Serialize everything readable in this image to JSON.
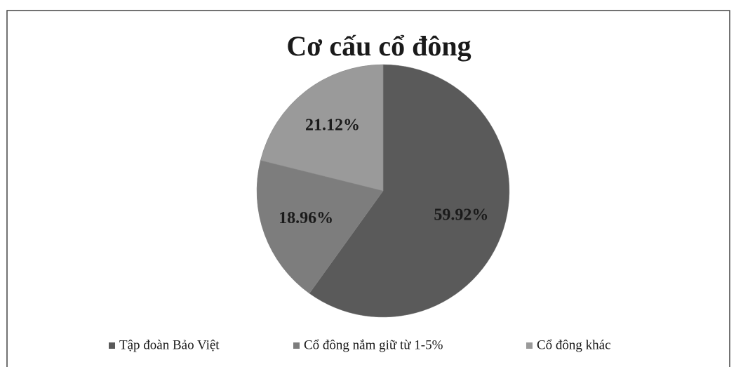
{
  "chart_data": {
    "type": "pie",
    "title": "Cơ cấu cổ đông",
    "categories": [
      "Tập đoàn Bảo Việt",
      "Cổ đông nắm giữ từ 1-5%",
      "Cổ đông khác"
    ],
    "values": [
      59.92,
      18.96,
      21.12
    ],
    "value_labels": [
      "59.92%",
      "18.96%",
      "21.12%"
    ],
    "colors": [
      "#5a5a5a",
      "#7d7d7d",
      "#9a9a9a"
    ],
    "legend": "bottom"
  }
}
